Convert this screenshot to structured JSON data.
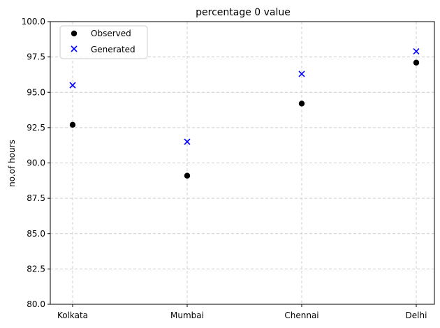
{
  "chart_data": {
    "type": "scatter",
    "title": "percentage 0 value",
    "xlabel": "",
    "ylabel": "no.of hours",
    "categories": [
      "Kolkata",
      "Mumbai",
      "Chennai",
      "Delhi"
    ],
    "ylim": [
      80.0,
      100.0
    ],
    "yticks": [
      "80.0",
      "82.5",
      "85.0",
      "87.5",
      "90.0",
      "92.5",
      "95.0",
      "97.5",
      "100.0"
    ],
    "grid": true,
    "legend_position": "top-left",
    "series": [
      {
        "name": "Observed",
        "marker": "circle",
        "color": "#000000",
        "values": [
          92.7,
          89.1,
          94.2,
          97.1
        ]
      },
      {
        "name": "Generated",
        "marker": "x",
        "color": "#0000ff",
        "values": [
          95.5,
          91.5,
          96.3,
          97.9
        ]
      }
    ]
  }
}
